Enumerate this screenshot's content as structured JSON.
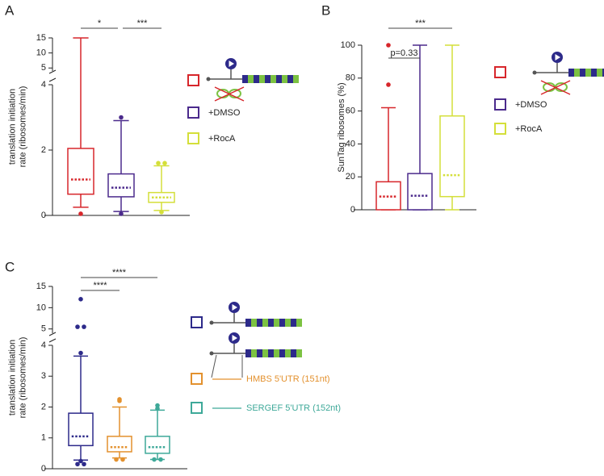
{
  "chart_data": [
    {
      "type": "box",
      "panel_label": "A",
      "ylabel_lines": [
        "translation initiation",
        "rate (ribosomes/min)"
      ],
      "ylim": [
        0,
        4
      ],
      "yticks": [
        0,
        2,
        4
      ],
      "y_upper_lim": [
        4,
        15
      ],
      "y_upper_ticks": [
        5,
        10,
        15
      ],
      "series": [
        {
          "color": "#d7262b",
          "whisker_low": 0.25,
          "q1": 0.65,
          "median": 1.1,
          "q3": 2.05,
          "whisker_high": 15,
          "outliers": [
            0.05
          ]
        },
        {
          "name": "+DMSO",
          "color": "#4b2a8c",
          "whisker_low": 0.12,
          "q1": 0.57,
          "median": 0.85,
          "q3": 1.27,
          "whisker_high": 2.9,
          "outliers": [
            3.0,
            0.05
          ]
        },
        {
          "name": "+RocA",
          "color": "#d4df3a",
          "whisker_low": 0.15,
          "q1": 0.4,
          "median": 0.55,
          "q3": 0.7,
          "whisker_high": 1.52,
          "outliers": [
            1.6,
            1.6,
            0.1
          ]
        }
      ],
      "annotations": [
        {
          "text": "*",
          "between": [
            0,
            1
          ]
        },
        {
          "text": "***",
          "between": [
            1,
            2
          ]
        }
      ]
    },
    {
      "type": "box",
      "panel_label": "B",
      "ylabel_lines": [
        "SunTag ribosomes (%)"
      ],
      "ylim": [
        0,
        100
      ],
      "yticks": [
        0,
        20,
        40,
        60,
        80,
        100
      ],
      "series": [
        {
          "color": "#d7262b",
          "whisker_low": 0,
          "q1": 0,
          "median": 8,
          "q3": 17,
          "whisker_high": 62,
          "outliers": [
            100,
            76
          ]
        },
        {
          "name": "+DMSO",
          "color": "#4b2a8c",
          "whisker_low": 0,
          "q1": 0,
          "median": 8.5,
          "q3": 22,
          "whisker_high": 100,
          "outliers": []
        },
        {
          "name": "+RocA",
          "color": "#d4df3a",
          "whisker_low": 0,
          "q1": 8,
          "median": 21,
          "q3": 57,
          "whisker_high": 100,
          "outliers": []
        }
      ],
      "annotations": [
        {
          "text": "p=0.33",
          "between": [
            0,
            1
          ]
        },
        {
          "text": "***",
          "between": [
            0,
            2
          ]
        }
      ]
    },
    {
      "type": "box",
      "panel_label": "C",
      "ylabel_lines": [
        "translation initiation",
        "rate (ribosomes/min)"
      ],
      "ylim": [
        0,
        4
      ],
      "yticks": [
        0,
        1,
        2,
        3,
        4
      ],
      "y_upper_lim": [
        4,
        15
      ],
      "y_upper_ticks": [
        5,
        10,
        15
      ],
      "series": [
        {
          "color": "#2d2a8a",
          "whisker_low": 0.28,
          "q1": 0.75,
          "median": 1.05,
          "q3": 1.8,
          "whisker_high": 3.65,
          "outliers": [
            12,
            5.5,
            5.5,
            3.75,
            0.25,
            0.15,
            0.15
          ]
        },
        {
          "name": "HMBS 5'UTR (151nt)",
          "color": "#e3912e",
          "whisker_low": 0.35,
          "q1": 0.55,
          "median": 0.7,
          "q3": 1.05,
          "whisker_high": 2.0,
          "outliers": [
            2.25,
            2.2,
            0.3,
            0.3
          ]
        },
        {
          "name": "SERGEF 5'UTR (152nt)",
          "color": "#3ea999",
          "whisker_low": 0.3,
          "q1": 0.5,
          "median": 0.7,
          "q3": 1.05,
          "whisker_high": 1.9,
          "outliers": [
            2.05,
            1.95,
            0.3,
            0.3
          ]
        }
      ],
      "annotations": [
        {
          "text": "****",
          "between": [
            0,
            1
          ]
        },
        {
          "text": "****",
          "between": [
            0,
            2
          ]
        }
      ]
    }
  ]
}
